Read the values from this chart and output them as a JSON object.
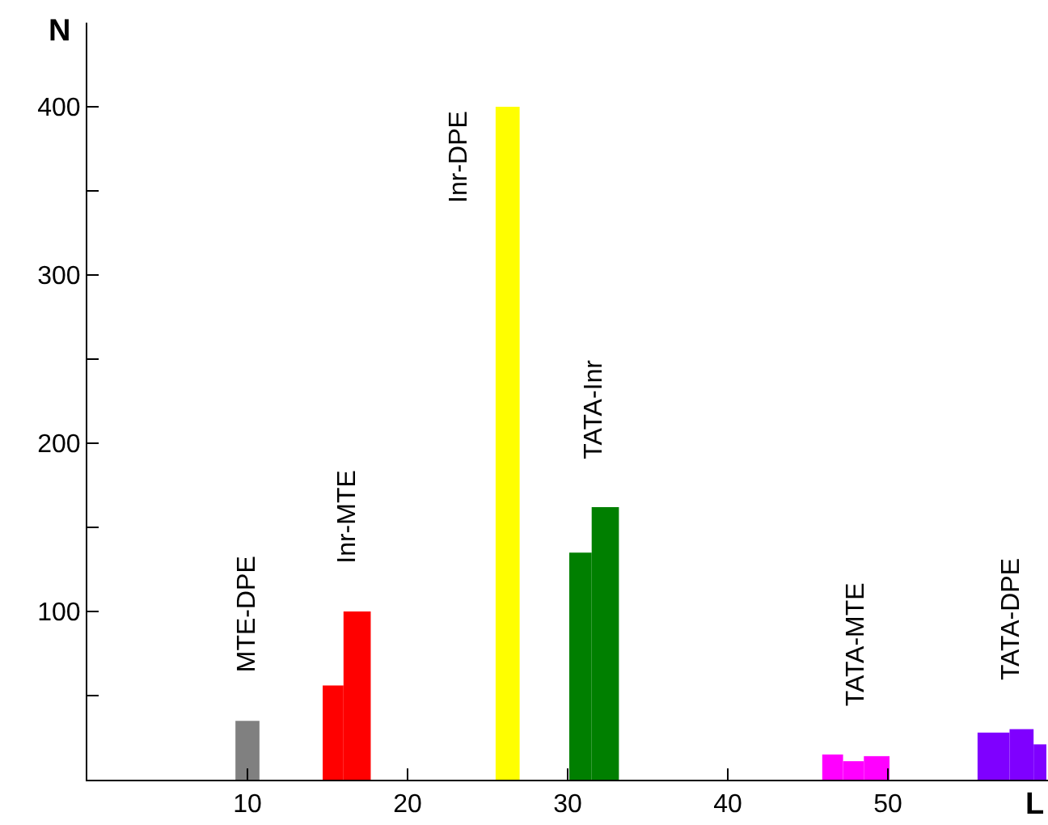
{
  "chart_data": {
    "type": "histogram",
    "xlabel": "L",
    "ylabel": "N",
    "bins": [
      9.25,
      10.75,
      14.7,
      16.0,
      17.7,
      25.5,
      27.0,
      30.1,
      31.5,
      33.2,
      45.9,
      47.2,
      48.5,
      50.1,
      55.6,
      57.6,
      59.1,
      59.9
    ],
    "values": [
      35,
      0,
      56,
      100,
      0,
      400,
      0,
      135,
      162,
      0,
      15,
      11,
      14,
      0,
      28,
      30,
      21
    ],
    "colors": [
      "#808080",
      "#ffffff",
      "#ff0000",
      "#ff0000",
      "#ffffff",
      "#ffff00",
      "#ffffff",
      "#007f00",
      "#007f00",
      "#ffffff",
      "#ff00ff",
      "#ff00ff",
      "#ff00ff",
      "#ffffff",
      "#7f00ff",
      "#7f00ff",
      "#7f00ff"
    ],
    "xlim": [
      0,
      60
    ],
    "xticks": [
      10,
      20,
      30,
      40,
      50
    ],
    "ylim": [
      0,
      450
    ],
    "yticks": [
      {
        "value": 50,
        "label": null
      },
      100,
      {
        "value": 150,
        "label": null
      },
      200,
      {
        "value": 250,
        "label": null
      },
      300,
      {
        "value": 350,
        "label": null
      },
      400
    ],
    "annotations": [
      "MTE-DPE",
      "Inr-MTE",
      "Inr-DPE",
      "TATA-Inr",
      "TATA-MTE",
      "TATA-DPE"
    ],
    "grid": false
  }
}
